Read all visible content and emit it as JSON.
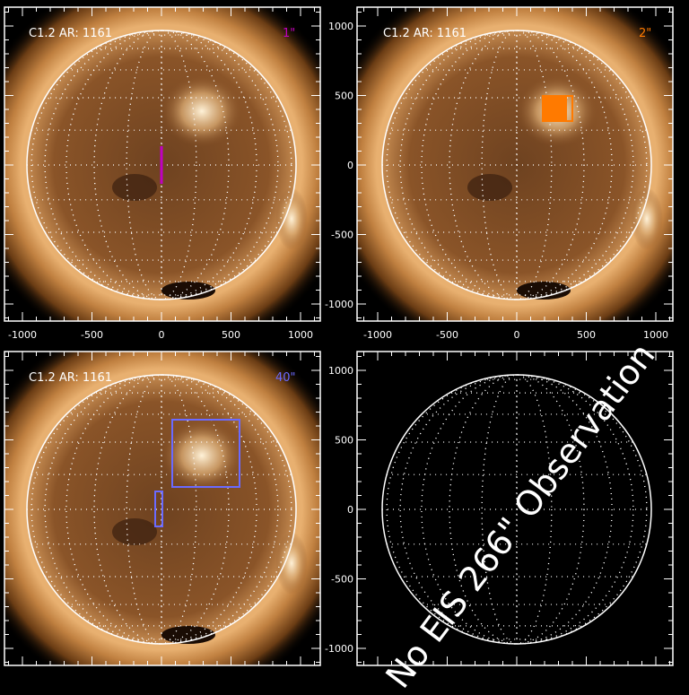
{
  "panels": [
    {
      "id": "tl",
      "label": "C1.2 AR: 1161",
      "tag": "1\"",
      "tag_color": "#c000c0",
      "has_image": true,
      "show_x_ticks": true,
      "show_y_ticks": false
    },
    {
      "id": "tr",
      "label": "C1.2 AR: 1161",
      "tag": "2\"",
      "tag_color": "#ff7a00",
      "has_image": true,
      "show_x_ticks": true,
      "show_y_ticks": true
    },
    {
      "id": "bl",
      "label": "C1.2 AR: 1161",
      "tag": "40\"",
      "tag_color": "#6a6aff",
      "has_image": true,
      "show_x_ticks": false,
      "show_y_ticks": false
    },
    {
      "id": "br",
      "label": "",
      "tag": "",
      "has_image": false,
      "message": "No EIS 266\" Observation",
      "show_x_ticks": false,
      "show_y_ticks": true
    }
  ],
  "axis_ticks": [
    "-1000",
    "-500",
    "0",
    "500",
    "1000"
  ],
  "colors": {
    "overlay_1": "#c000c0",
    "overlay_2": "#ff7a00",
    "overlay_40": "#6a6aff",
    "limb": "#ffffff"
  }
}
